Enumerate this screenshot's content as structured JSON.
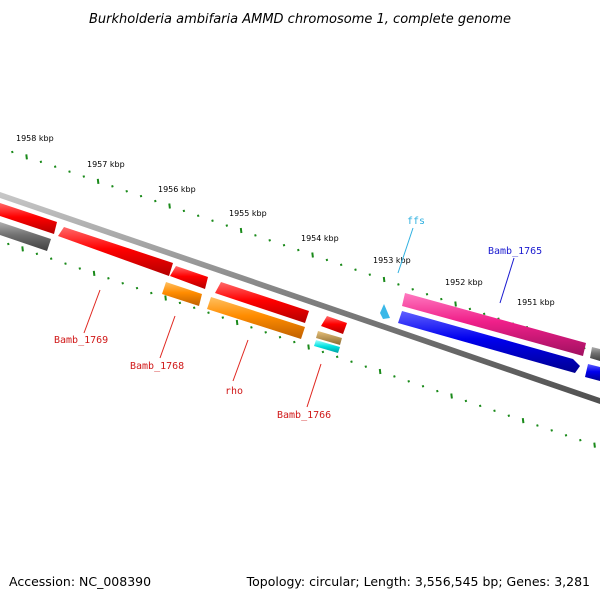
{
  "title": "Burkholderia ambifaria AMMD chromosome 1, complete genome",
  "footer": {
    "accession": "Accession: NC_008390",
    "topology": "Topology: circular; Length: 3,556,545 bp; Genes: 3,281"
  },
  "ruler": {
    "tick_color": "#1a8a1a",
    "labels": [
      "1958 kbp",
      "1957 kbp",
      "1956 kbp",
      "1955 kbp",
      "1954 kbp",
      "1953 kbp",
      "1952 kbp",
      "1951 kbp"
    ]
  },
  "backbone_color": "#8a8a8a",
  "genes": [
    {
      "label": "Bamb_1769",
      "color": "#e0261f"
    },
    {
      "label": "Bamb_1768",
      "color": "#e0261f"
    },
    {
      "label": "rho",
      "color": "#e0261f"
    },
    {
      "label": "Bamb_1766",
      "color": "#e0261f"
    },
    {
      "label": "ffs",
      "color": "#2fb0e0"
    },
    {
      "label": "Bamb_1765",
      "color": "#1a1ad0"
    }
  ]
}
